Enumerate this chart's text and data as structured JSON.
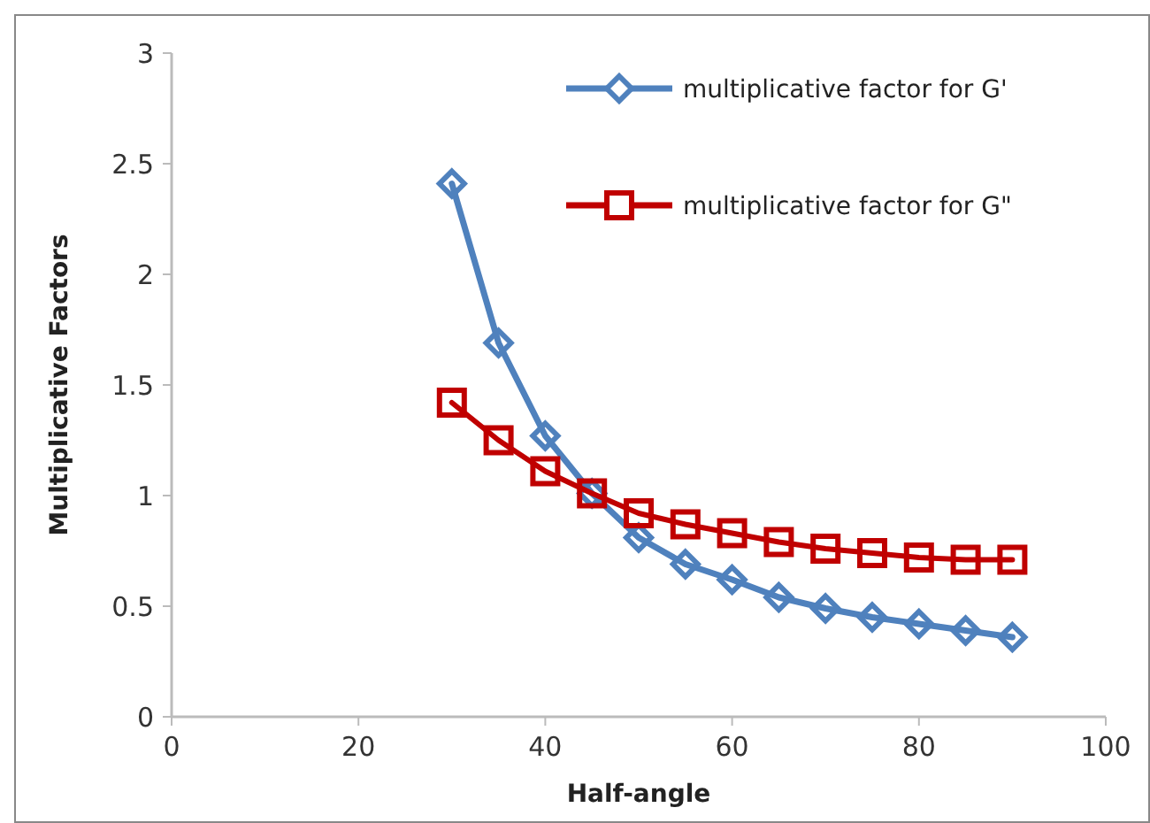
{
  "chart_data": {
    "type": "line",
    "xlabel": "Half-angle",
    "ylabel": "Multiplicative Factors",
    "x": [
      30,
      35,
      40,
      45,
      50,
      55,
      60,
      65,
      70,
      75,
      80,
      85,
      90
    ],
    "series": [
      {
        "name": "multiplicative factor for G'",
        "color": "#4f81bd",
        "marker": "diamond",
        "values": [
          2.41,
          1.69,
          1.27,
          1.01,
          0.81,
          0.69,
          0.62,
          0.54,
          0.49,
          0.45,
          0.42,
          0.39,
          0.36
        ]
      },
      {
        "name": "multiplicative factor for G\"",
        "color": "#c00000",
        "marker": "square",
        "values": [
          1.42,
          1.25,
          1.11,
          1.01,
          0.92,
          0.87,
          0.83,
          0.79,
          0.76,
          0.74,
          0.72,
          0.71,
          0.71
        ]
      }
    ],
    "xlim": [
      0,
      100
    ],
    "xticks": [
      0,
      20,
      40,
      60,
      80,
      100
    ],
    "ylim": [
      0,
      3
    ],
    "yticks": [
      0,
      0.5,
      1,
      1.5,
      2,
      2.5,
      3
    ],
    "grid": false,
    "legend": "top right",
    "line_style": "solid"
  }
}
